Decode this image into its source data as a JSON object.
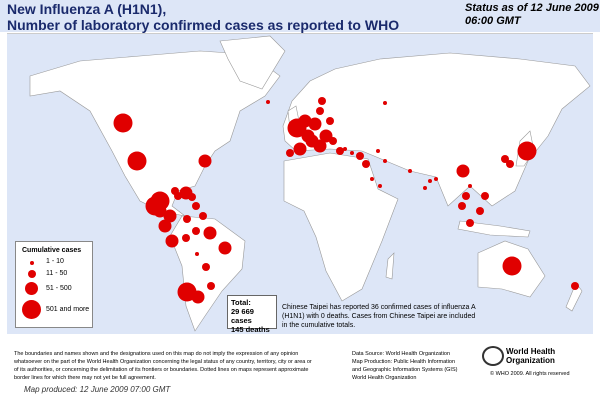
{
  "header": {
    "title_line1": "New Influenza A (H1N1),",
    "title_line2": "Number of  laboratory confirmed cases as reported to WHO",
    "status_line1": "Status as of 12 June 2009",
    "status_line2": "06:00 GMT"
  },
  "colors": {
    "ocean": "#dde6f7",
    "land": "#ffffff",
    "marker": "#e00000"
  },
  "legend": {
    "title": "Cumulative cases",
    "items": [
      {
        "label": "1 - 10"
      },
      {
        "label": "11 - 50"
      },
      {
        "label": "51 - 500"
      },
      {
        "label": "501 and more"
      }
    ]
  },
  "total": {
    "label": "Total:",
    "cases": "29 669 cases",
    "deaths": "145 deaths"
  },
  "note": "Chinese Taipei has reported 36 confirmed cases of influenza A (H1N1) with 0 deaths. Cases from Chinese Taipei are included in the cumulative totals.",
  "footer": {
    "disclaimer": "The boundaries and names shown and the designations used on this map do not imply the expression of any opinion whatsoever on the part of the World Health Organization concerning the legal status of any country, territory, city or area or of its authorities, or concerning the delimitation of its frontiers or boundaries.  Dotted lines on maps represent approximate border lines for which there may not yet be full agreement.",
    "source_lines": [
      "Data Source: World Health Organization",
      "Map Production: Public Health Information",
      "and Geographic Information Systems (GIS)",
      "World Health Organization"
    ],
    "who_name": "World Health Organization",
    "copyright": "© WHO 2009. All rights reserved",
    "map_produced": "Map produced: 12 June 2009 07:00 GMT"
  }
}
